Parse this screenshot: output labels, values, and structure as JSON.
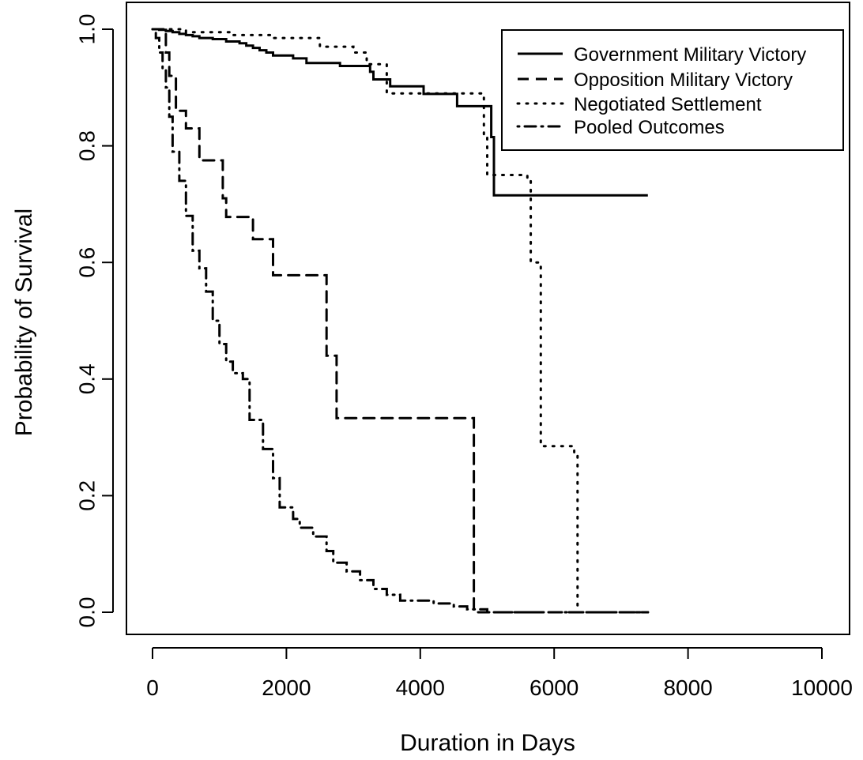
{
  "chart_data": {
    "type": "line",
    "title": "",
    "xlabel": "Duration in Days",
    "ylabel": "Probability of Survival",
    "xlim": [
      0,
      10000
    ],
    "ylim": [
      0,
      1
    ],
    "x_ticks": [
      "0",
      "2000",
      "4000",
      "6000",
      "8000",
      "10000"
    ],
    "y_ticks": [
      "0.0",
      "0.2",
      "0.4",
      "0.6",
      "0.8",
      "1.0"
    ],
    "grid": false,
    "legend_position": "top-right",
    "series": [
      {
        "name": "Government Military Victory",
        "line_style": "solid",
        "step_points": [
          [
            0,
            1.0
          ],
          [
            100,
            0.999
          ],
          [
            200,
            0.997
          ],
          [
            300,
            0.995
          ],
          [
            400,
            0.992
          ],
          [
            500,
            0.99
          ],
          [
            600,
            0.988
          ],
          [
            700,
            0.985
          ],
          [
            900,
            0.983
          ],
          [
            1100,
            0.979
          ],
          [
            1300,
            0.976
          ],
          [
            1400,
            0.972
          ],
          [
            1500,
            0.968
          ],
          [
            1600,
            0.964
          ],
          [
            1700,
            0.96
          ],
          [
            1800,
            0.955
          ],
          [
            2100,
            0.95
          ],
          [
            2300,
            0.942
          ],
          [
            2600,
            0.942
          ],
          [
            2800,
            0.937
          ],
          [
            3250,
            0.927
          ],
          [
            3300,
            0.914
          ],
          [
            3550,
            0.902
          ],
          [
            4050,
            0.889
          ],
          [
            4550,
            0.868
          ],
          [
            5060,
            0.815
          ],
          [
            5100,
            0.715
          ],
          [
            7400,
            0.715
          ]
        ]
      },
      {
        "name": "Opposition Military Victory",
        "line_style": "dashed",
        "step_points": [
          [
            0,
            1.0
          ],
          [
            200,
            0.96
          ],
          [
            250,
            0.92
          ],
          [
            350,
            0.86
          ],
          [
            500,
            0.83
          ],
          [
            700,
            0.775
          ],
          [
            1050,
            0.71
          ],
          [
            1100,
            0.678
          ],
          [
            1500,
            0.64
          ],
          [
            1800,
            0.578
          ],
          [
            2600,
            0.44
          ],
          [
            2750,
            0.333
          ],
          [
            4800,
            0.0
          ],
          [
            7400,
            0.0
          ]
        ]
      },
      {
        "name": "Negotiated Settlement",
        "line_style": "dotted",
        "step_points": [
          [
            0,
            1.0
          ],
          [
            500,
            0.995
          ],
          [
            1200,
            0.99
          ],
          [
            1800,
            0.985
          ],
          [
            2500,
            0.97
          ],
          [
            3000,
            0.96
          ],
          [
            3200,
            0.94
          ],
          [
            3500,
            0.89
          ],
          [
            4800,
            0.89
          ],
          [
            4950,
            0.82
          ],
          [
            5000,
            0.75
          ],
          [
            5600,
            0.74
          ],
          [
            5650,
            0.6
          ],
          [
            5800,
            0.285
          ],
          [
            6300,
            0.27
          ],
          [
            6350,
            0.0
          ],
          [
            7400,
            0.0
          ]
        ]
      },
      {
        "name": "Pooled Outcomes",
        "line_style": "dotdash",
        "step_points": [
          [
            0,
            1.0
          ],
          [
            50,
            0.985
          ],
          [
            100,
            0.96
          ],
          [
            150,
            0.93
          ],
          [
            200,
            0.9
          ],
          [
            250,
            0.85
          ],
          [
            300,
            0.79
          ],
          [
            400,
            0.74
          ],
          [
            500,
            0.68
          ],
          [
            600,
            0.62
          ],
          [
            700,
            0.59
          ],
          [
            800,
            0.55
          ],
          [
            900,
            0.5
          ],
          [
            1000,
            0.46
          ],
          [
            1100,
            0.43
          ],
          [
            1200,
            0.41
          ],
          [
            1350,
            0.4
          ],
          [
            1450,
            0.33
          ],
          [
            1650,
            0.28
          ],
          [
            1800,
            0.23
          ],
          [
            1900,
            0.18
          ],
          [
            2100,
            0.16
          ],
          [
            2200,
            0.145
          ],
          [
            2400,
            0.13
          ],
          [
            2600,
            0.105
          ],
          [
            2700,
            0.085
          ],
          [
            2900,
            0.07
          ],
          [
            3100,
            0.055
          ],
          [
            3300,
            0.04
          ],
          [
            3500,
            0.03
          ],
          [
            3700,
            0.02
          ],
          [
            4200,
            0.015
          ],
          [
            4500,
            0.01
          ],
          [
            4700,
            0.005
          ],
          [
            5000,
            0.0
          ],
          [
            7400,
            0.0
          ]
        ]
      }
    ]
  }
}
